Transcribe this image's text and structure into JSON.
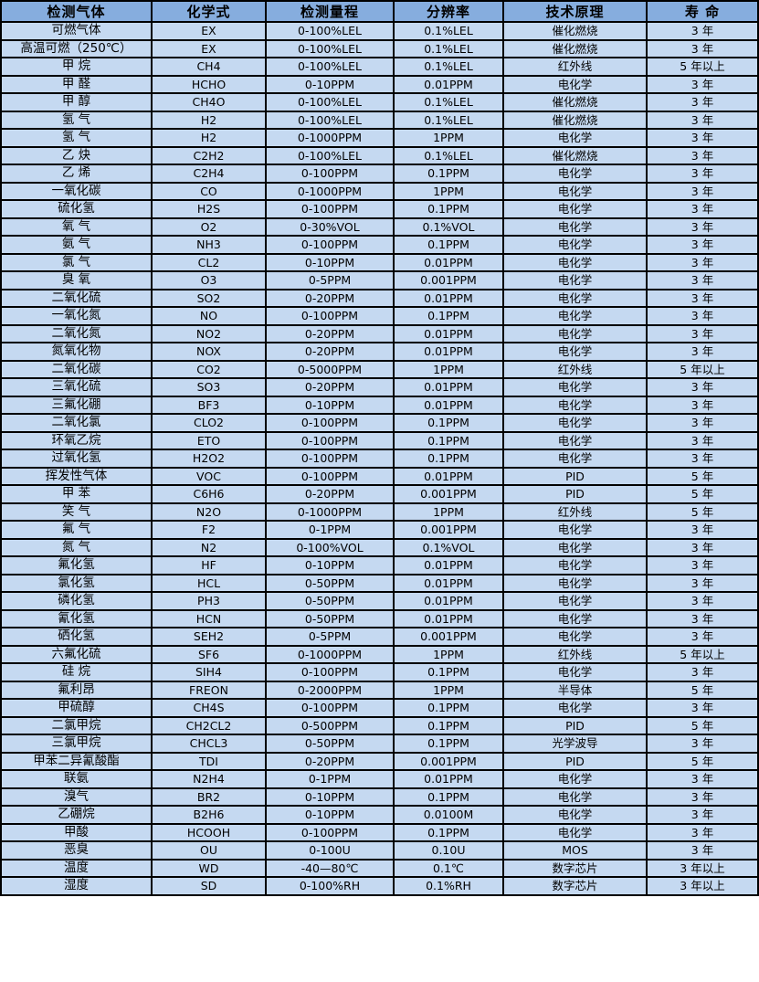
{
  "colors": {
    "header_bg": "#86ADDE",
    "row_bg": "#C5D9F1",
    "border": "#000000",
    "text": "#000000"
  },
  "table": {
    "columns": [
      "检测气体",
      "化学式",
      "检测量程",
      "分辨率",
      "技术原理",
      "寿 命"
    ],
    "rows": [
      [
        "可燃气体",
        "EX",
        "0-100%LEL",
        "0.1%LEL",
        "催化燃烧",
        "3 年"
      ],
      [
        "高温可燃（250℃）",
        "EX",
        "0-100%LEL",
        "0.1%LEL",
        "催化燃烧",
        "3 年"
      ],
      [
        "甲 烷",
        "CH4",
        "0-100%LEL",
        "0.1%LEL",
        "红外线",
        "5 年以上"
      ],
      [
        "甲 醛",
        "HCHO",
        "0-10PPM",
        "0.01PPM",
        "电化学",
        "3 年"
      ],
      [
        "甲 醇",
        "CH4O",
        "0-100%LEL",
        "0.1%LEL",
        "催化燃烧",
        "3 年"
      ],
      [
        "氢 气",
        "H2",
        "0-100%LEL",
        "0.1%LEL",
        "催化燃烧",
        "3 年"
      ],
      [
        "氢 气",
        "H2",
        "0-1000PPM",
        "1PPM",
        "电化学",
        "3 年"
      ],
      [
        "乙 炔",
        "C2H2",
        "0-100%LEL",
        "0.1%LEL",
        "催化燃烧",
        "3 年"
      ],
      [
        "乙 烯",
        "C2H4",
        "0-100PPM",
        "0.1PPM",
        "电化学",
        "3 年"
      ],
      [
        "一氧化碳",
        "CO",
        "0-1000PPM",
        "1PPM",
        "电化学",
        "3 年"
      ],
      [
        "硫化氢",
        "H2S",
        "0-100PPM",
        "0.1PPM",
        "电化学",
        "3 年"
      ],
      [
        "氧 气",
        "O2",
        "0-30%VOL",
        "0.1%VOL",
        "电化学",
        "3 年"
      ],
      [
        "氨 气",
        "NH3",
        "0-100PPM",
        "0.1PPM",
        "电化学",
        "3 年"
      ],
      [
        "氯 气",
        "CL2",
        "0-10PPM",
        "0.01PPM",
        "电化学",
        "3 年"
      ],
      [
        "臭 氧",
        "O3",
        "0-5PPM",
        "0.001PPM",
        "电化学",
        "3 年"
      ],
      [
        "二氧化硫",
        "SO2",
        "0-20PPM",
        "0.01PPM",
        "电化学",
        "3 年"
      ],
      [
        "一氧化氮",
        "NO",
        "0-100PPM",
        "0.1PPM",
        "电化学",
        "3 年"
      ],
      [
        "二氧化氮",
        "NO2",
        "0-20PPM",
        "0.01PPM",
        "电化学",
        "3 年"
      ],
      [
        "氮氧化物",
        "NOX",
        "0-20PPM",
        "0.01PPM",
        "电化学",
        "3 年"
      ],
      [
        "二氧化碳",
        "CO2",
        "0-5000PPM",
        "1PPM",
        "红外线",
        "5 年以上"
      ],
      [
        "三氧化硫",
        "SO3",
        "0-20PPM",
        "0.01PPM",
        "电化学",
        "3 年"
      ],
      [
        "三氟化硼",
        "BF3",
        "0-10PPM",
        "0.01PPM",
        "电化学",
        "3 年"
      ],
      [
        "二氧化氯",
        "CLO2",
        "0-100PPM",
        "0.1PPM",
        "电化学",
        "3 年"
      ],
      [
        "环氧乙烷",
        "ETO",
        "0-100PPM",
        "0.1PPM",
        "电化学",
        "3 年"
      ],
      [
        "过氧化氢",
        "H2O2",
        "0-100PPM",
        "0.1PPM",
        "电化学",
        "3 年"
      ],
      [
        "挥发性气体",
        "VOC",
        "0-100PPM",
        "0.01PPM",
        "PID",
        "5 年"
      ],
      [
        "甲 苯",
        "C6H6",
        "0-20PPM",
        "0.001PPM",
        "PID",
        "5 年"
      ],
      [
        "笑 气",
        "N2O",
        "0-1000PPM",
        "1PPM",
        "红外线",
        "5 年"
      ],
      [
        "氟 气",
        "F2",
        "0-1PPM",
        "0.001PPM",
        "电化学",
        "3 年"
      ],
      [
        "氮 气",
        "N2",
        "0-100%VOL",
        "0.1%VOL",
        "电化学",
        "3 年"
      ],
      [
        "氟化氢",
        "HF",
        "0-10PPM",
        "0.01PPM",
        "电化学",
        "3 年"
      ],
      [
        "氯化氢",
        "HCL",
        "0-50PPM",
        "0.01PPM",
        "电化学",
        "3 年"
      ],
      [
        "磷化氢",
        "PH3",
        "0-50PPM",
        "0.01PPM",
        "电化学",
        "3 年"
      ],
      [
        "氰化氢",
        "HCN",
        "0-50PPM",
        "0.01PPM",
        "电化学",
        "3 年"
      ],
      [
        "硒化氢",
        "SEH2",
        "0-5PPM",
        "0.001PPM",
        "电化学",
        "3 年"
      ],
      [
        "六氟化硫",
        "SF6",
        "0-1000PPM",
        "1PPM",
        "红外线",
        "5 年以上"
      ],
      [
        "硅 烷",
        "SIH4",
        "0-100PPM",
        "0.1PPM",
        "电化学",
        "3 年"
      ],
      [
        "氟利昂",
        "FREON",
        "0-2000PPM",
        "1PPM",
        "半导体",
        "5 年"
      ],
      [
        "甲硫醇",
        "CH4S",
        "0-100PPM",
        "0.1PPM",
        "电化学",
        "3 年"
      ],
      [
        "二氯甲烷",
        "CH2CL2",
        "0-500PPM",
        "0.1PPM",
        "PID",
        "5 年"
      ],
      [
        "三氯甲烷",
        "CHCL3",
        "0-50PPM",
        "0.1PPM",
        "光学波导",
        "3 年"
      ],
      [
        "甲苯二异氰酸酯",
        "TDI",
        "0-20PPM",
        "0.001PPM",
        "PID",
        "5 年"
      ],
      [
        "联氨",
        "N2H4",
        "0-1PPM",
        "0.01PPM",
        "电化学",
        "3 年"
      ],
      [
        "溴气",
        "BR2",
        "0-10PPM",
        "0.1PPM",
        "电化学",
        "3 年"
      ],
      [
        "乙硼烷",
        "B2H6",
        "0-10PPM",
        "0.0100M",
        "电化学",
        "3 年"
      ],
      [
        "甲酸",
        "HCOOH",
        "0-100PPM",
        "0.1PPM",
        "电化学",
        "3 年"
      ],
      [
        "恶臭",
        "OU",
        "0-100U",
        "0.10U",
        "MOS",
        "3 年"
      ],
      [
        "温度",
        "WD",
        "-40—80℃",
        "0.1℃",
        "数字芯片",
        "3 年以上"
      ],
      [
        "湿度",
        "SD",
        "0-100%RH",
        "0.1%RH",
        "数字芯片",
        "3 年以上"
      ]
    ]
  }
}
